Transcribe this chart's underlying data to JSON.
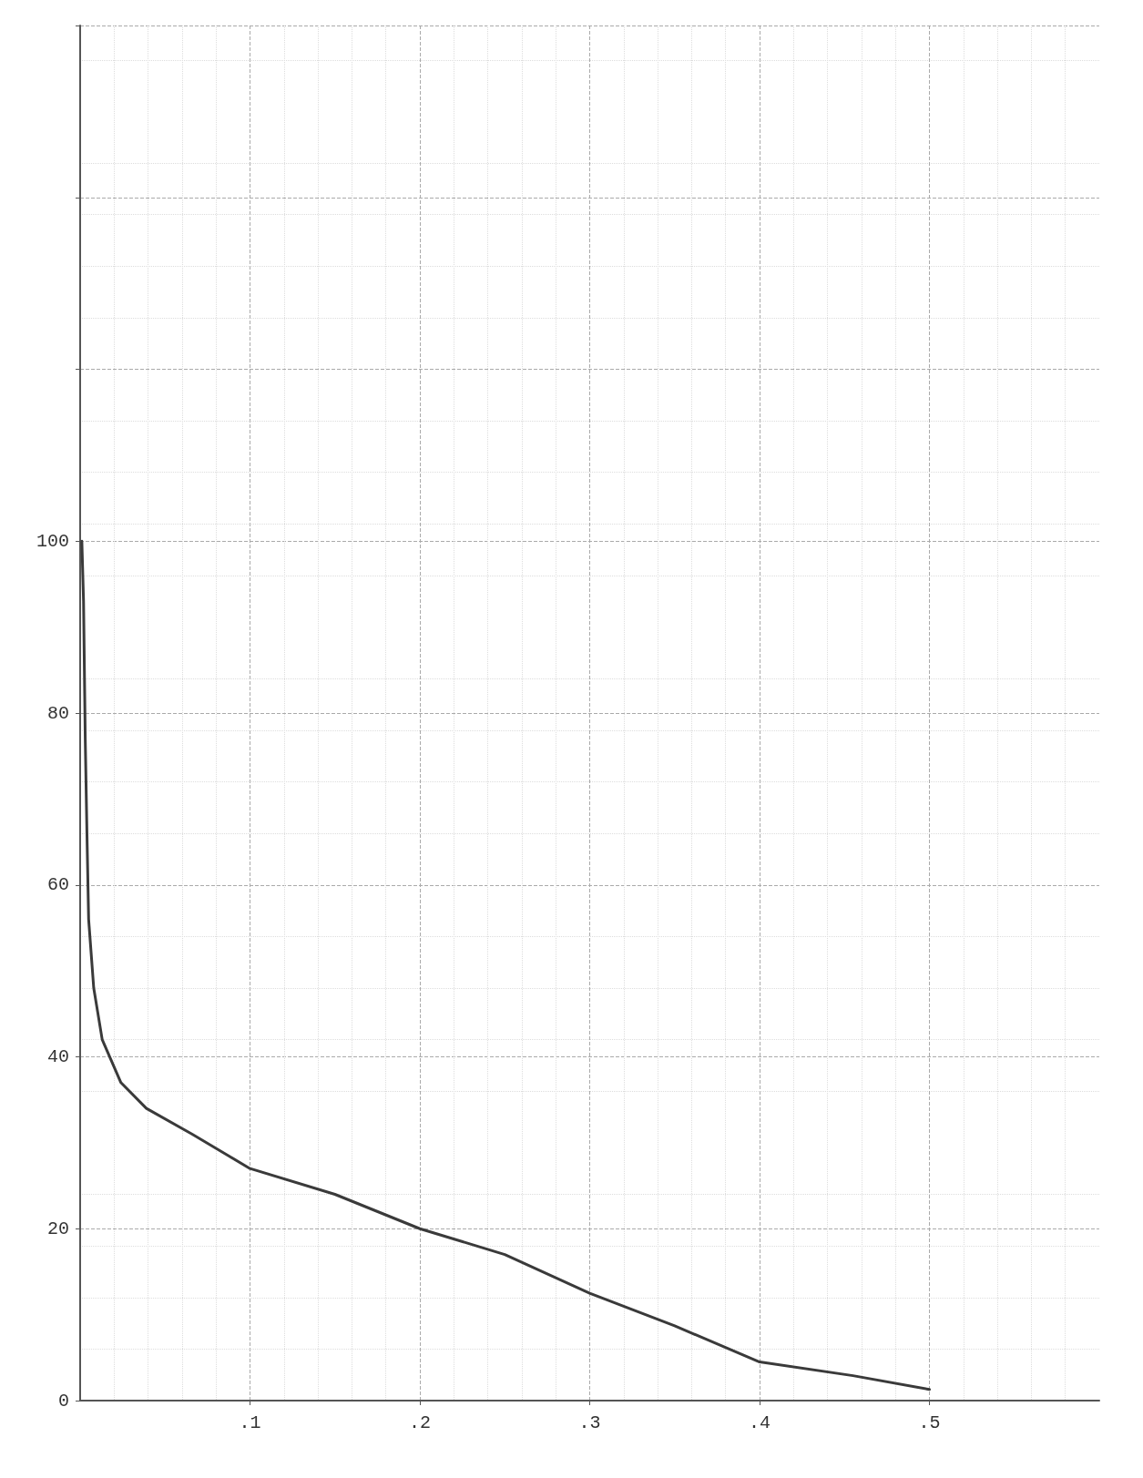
{
  "chart_data": {
    "type": "line",
    "x": [
      0.001,
      0.002,
      0.003,
      0.004,
      0.005,
      0.008,
      0.013,
      0.024,
      0.039,
      0.066,
      0.1,
      0.15,
      0.2,
      0.25,
      0.3,
      0.35,
      0.4,
      0.455,
      0.5
    ],
    "series": [
      {
        "color": "#3a3a3a",
        "values": [
          100,
          93,
          77,
          66,
          56,
          48,
          42,
          37,
          34,
          31,
          27,
          24,
          20,
          17,
          12.5,
          8.7,
          4.5,
          2.9,
          1.3
        ]
      }
    ],
    "xlim": [
      0,
      0.6
    ],
    "ylim": [
      0,
      160
    ],
    "xticks": [
      {
        "value": 0.1,
        "label": ".1"
      },
      {
        "value": 0.2,
        "label": ".2"
      },
      {
        "value": 0.3,
        "label": ".3"
      },
      {
        "value": 0.4,
        "label": ".4"
      },
      {
        "value": 0.5,
        "label": ".5"
      }
    ],
    "yticks": [
      0,
      20,
      40,
      60,
      80,
      100,
      {
        "value": 120,
        "label": null
      },
      {
        "value": 140,
        "label": null
      },
      {
        "value": 160,
        "label": null
      }
    ],
    "grid": true,
    "marker": "none",
    "line_style": "solid"
  }
}
